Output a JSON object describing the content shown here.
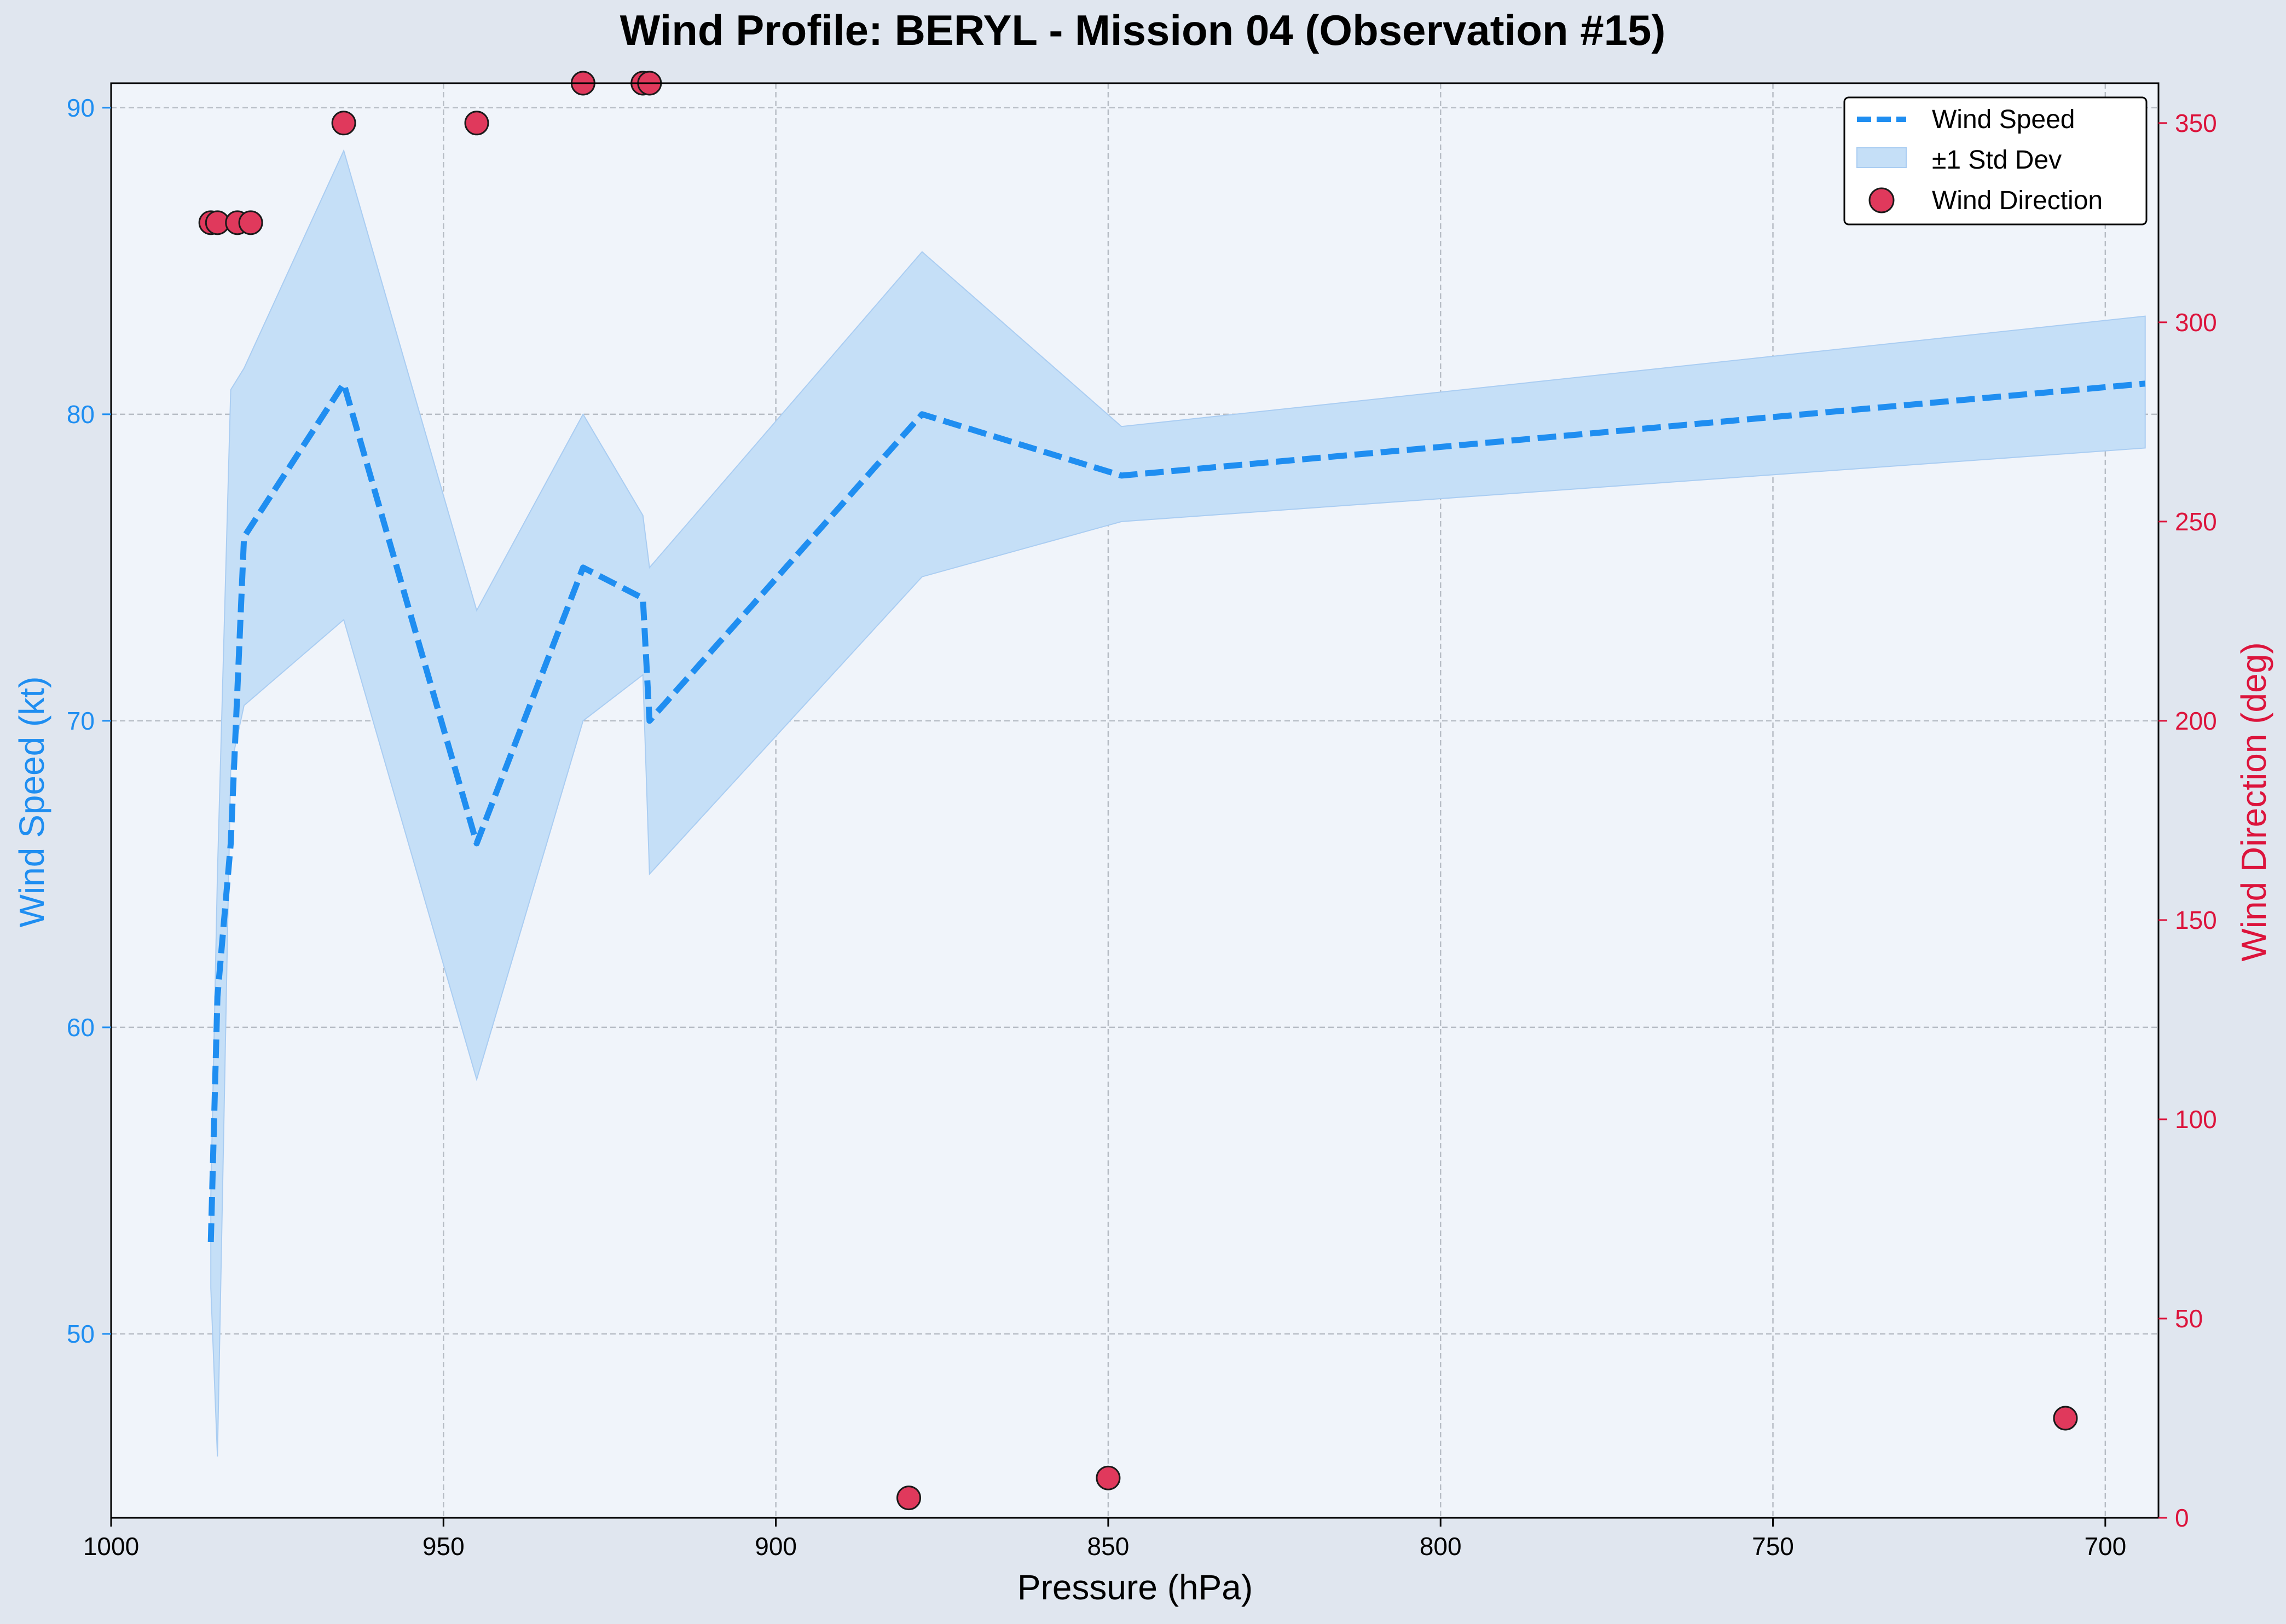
{
  "colors": {
    "page_bg": "#e0e6ef",
    "plot_bg": "#f0f4fa",
    "speed": "#1f8ef1",
    "band": "#c5dff7",
    "band_edge": "#aacdf2",
    "direction": "#dc143c",
    "direction_fill": "#e0395c",
    "grid": "#aab0b8",
    "axis": "#000000"
  },
  "chart_data": {
    "type": "line",
    "title": "Wind Profile: BERYL - Mission 04 (Observation #15)",
    "xlabel": "Pressure (hPa)",
    "ylabel": "Wind Speed (kt)",
    "y2label": "Wind Direction (deg)",
    "xlim": [
      1000,
      692
    ],
    "ylim": [
      44,
      90.8
    ],
    "y2lim": [
      0,
      360
    ],
    "x_inverted": true,
    "grid": true,
    "legend_position": "top-right",
    "xticks": [
      1000,
      950,
      900,
      850,
      800,
      750,
      700
    ],
    "yticks": [
      50,
      60,
      70,
      80,
      90
    ],
    "y2ticks": [
      0,
      50,
      100,
      150,
      200,
      250,
      300,
      350
    ],
    "series": [
      {
        "name": "Wind Speed",
        "axis": "left",
        "style": "dashed-line",
        "x": [
          985,
          984,
          982,
          980,
          965,
          945,
          929,
          920,
          919,
          878,
          848,
          694
        ],
        "y": [
          53,
          61,
          66,
          76,
          81,
          66,
          75,
          74,
          70,
          80,
          78,
          81
        ],
        "lower": [
          51.5,
          46,
          68.5,
          70.5,
          73.3,
          58.3,
          70,
          71.5,
          65,
          74.7,
          76.5,
          78.9
        ],
        "upper": [
          54.5,
          65,
          80.8,
          81.5,
          88.6,
          73.6,
          80,
          76.7,
          75,
          85.3,
          79.6,
          83.2
        ]
      },
      {
        "name": "±1 Std Dev",
        "axis": "left",
        "style": "band"
      },
      {
        "name": "Wind Direction",
        "axis": "right",
        "style": "scatter",
        "x": [
          985,
          984,
          981,
          979,
          965,
          945,
          929,
          920,
          919,
          880,
          850,
          706
        ],
        "y": [
          325,
          325,
          325,
          325,
          350,
          350,
          360,
          360,
          360,
          5,
          10,
          25
        ]
      }
    ]
  }
}
